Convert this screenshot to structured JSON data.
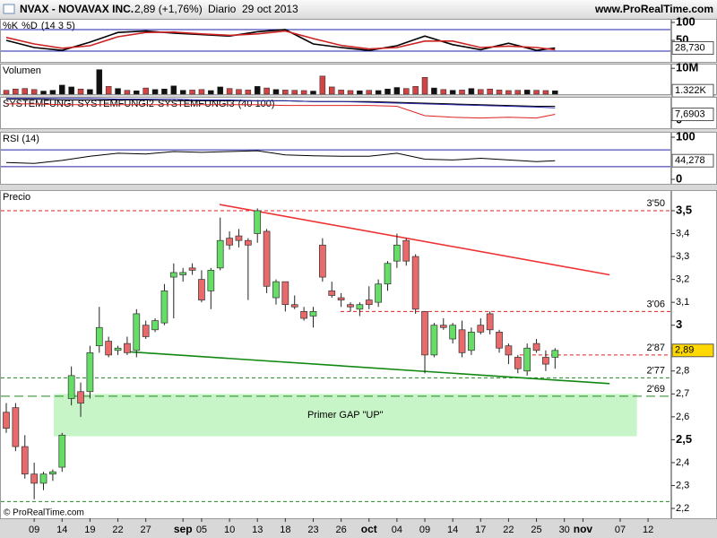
{
  "header": {
    "symbol": "NVAX - NOVAVAX INC.",
    "price": "2,89 (+1,76%)",
    "period": "Diario  29 oct 2013",
    "site": "www.ProRealTime.com"
  },
  "footer": "© ProRealTime.com",
  "chart_data": [
    {
      "type": "line",
      "title": "(14 3 5)",
      "xlim": [
        -0.675,
        71.4
      ],
      "ylim": [
        -10,
        110
      ],
      "yticks": [
        100,
        50
      ],
      "levels": [
        80,
        20
      ],
      "last_label": "28,730",
      "x": [
        0,
        3,
        6,
        9,
        12,
        15,
        18,
        21,
        24,
        27,
        30,
        33,
        36,
        39,
        42,
        45,
        48,
        51,
        54,
        57,
        59
      ],
      "series": [
        {
          "name": "%K",
          "color": "#000000",
          "values": [
            50,
            30,
            22,
            45,
            72,
            76,
            70,
            66,
            62,
            74,
            80,
            40,
            30,
            22,
            35,
            62,
            38,
            24,
            42,
            22,
            28.73
          ]
        },
        {
          "name": "%D",
          "color": "#cc2222",
          "values": [
            58,
            40,
            28,
            35,
            60,
            72,
            73,
            68,
            64,
            68,
            76,
            55,
            36,
            26,
            30,
            48,
            48,
            30,
            34,
            30,
            24
          ]
        }
      ]
    },
    {
      "type": "bar",
      "title": "Volumen",
      "xlim": [
        -0.675,
        71.4
      ],
      "ylim": [
        0,
        11800
      ],
      "yticks": [
        {
          "value": 10000,
          "label": "10M"
        }
      ],
      "last_label": "1.322K",
      "values": [
        1500,
        2000,
        2200,
        1800,
        1200,
        1500,
        3500,
        2800,
        2000,
        1800,
        9500,
        3000,
        2200,
        1500,
        1300,
        2400,
        1800,
        2000,
        3200,
        1500,
        1600,
        1800,
        1400,
        2800,
        2200,
        1800,
        1600,
        3000,
        2400,
        1800,
        1600,
        1500,
        1400,
        1200,
        7000,
        2800,
        1600,
        1400,
        1300,
        1500,
        1400,
        2000,
        2600,
        2200,
        3000,
        6500,
        2400,
        1800,
        1500,
        1600,
        2200,
        1800,
        2000,
        1600,
        1400,
        1500,
        1600,
        1500,
        1400,
        1322
      ]
    },
    {
      "type": "line",
      "title": "(40 100)",
      "xlim": [
        -0.675,
        71.4
      ],
      "ylim": [
        -10,
        30
      ],
      "yticks": [
        0
      ],
      "last_label": "7,6903",
      "x": [
        0,
        3,
        6,
        9,
        12,
        15,
        18,
        21,
        24,
        27,
        30,
        33,
        36,
        39,
        42,
        45,
        48,
        51,
        54,
        57,
        59
      ],
      "series": [
        {
          "name": "SYSTEMFUNGI",
          "color": "#000000",
          "values": [
            27,
            27,
            26,
            26,
            26,
            26,
            25,
            25,
            25,
            25,
            25,
            24,
            24,
            24,
            23,
            22,
            21,
            20,
            19,
            18,
            18
          ]
        },
        {
          "name": "SYSTEMFUNGI2",
          "color": "#dd2222",
          "values": [
            21,
            21,
            20,
            20,
            20,
            20,
            20,
            20,
            20,
            20,
            19,
            19,
            19,
            19,
            18,
            6,
            4,
            3,
            4,
            3,
            7.6903
          ]
        },
        {
          "name": "SYSTEMFUNGI3",
          "color": "#2222aa",
          "values": [
            28,
            28,
            28,
            28,
            27,
            27,
            27,
            26,
            26,
            25,
            25,
            24,
            24,
            23,
            22,
            21,
            20,
            19,
            18,
            17,
            16
          ]
        }
      ]
    },
    {
      "type": "line",
      "title": "RSI (14)",
      "xlim": [
        -0.675,
        71.4
      ],
      "ylim": [
        -10.6,
        112.8
      ],
      "yticks": [
        100,
        0
      ],
      "levels": [
        70,
        30
      ],
      "last_label": "44,278",
      "x": [
        0,
        3,
        6,
        9,
        12,
        15,
        18,
        21,
        24,
        27,
        30,
        33,
        36,
        39,
        42,
        45,
        48,
        51,
        54,
        57,
        59
      ],
      "series": [
        {
          "color": "#000000",
          "values": [
            40,
            38,
            45,
            55,
            62,
            60,
            66,
            64,
            66,
            68,
            58,
            56,
            55,
            55,
            62,
            48,
            46,
            50,
            46,
            42,
            44.278
          ]
        }
      ]
    },
    {
      "type": "candlestick",
      "title": "Precio",
      "xlim": [
        -0.675,
        71.4
      ],
      "ylim": [
        2.157,
        3.59
      ],
      "last_label": "2,89",
      "up_color": "#66dd66",
      "down_color": "#e86a6a",
      "yticks": [
        {
          "value": 3.5,
          "label": "3,5"
        },
        {
          "value": 3.4,
          "label": "3,4"
        },
        {
          "value": 3.3,
          "label": "3,3"
        },
        {
          "value": 3.2,
          "label": "3,2"
        },
        {
          "value": 3.1,
          "label": "3,1"
        },
        3,
        {
          "value": 2.9,
          "label": "2,9"
        },
        {
          "value": 2.8,
          "label": "2,8"
        },
        {
          "value": 2.7,
          "label": "2,7"
        },
        {
          "value": 2.6,
          "label": "2,6"
        },
        {
          "value": 2.5,
          "label": "2,5"
        },
        {
          "value": 2.4,
          "label": "2,4"
        },
        {
          "value": 2.3,
          "label": "2,3"
        },
        {
          "value": 2.2,
          "label": "2,2"
        }
      ],
      "xticks": [
        {
          "value": 3,
          "label": "09"
        },
        {
          "value": 6,
          "label": "14"
        },
        {
          "value": 9,
          "label": "19"
        },
        {
          "value": 12,
          "label": "22"
        },
        {
          "value": 15,
          "label": "27"
        },
        {
          "value": 19,
          "label": "sep"
        },
        {
          "value": 21,
          "label": "05"
        },
        {
          "value": 24,
          "label": "10"
        },
        {
          "value": 27,
          "label": "13"
        },
        {
          "value": 30,
          "label": "18"
        },
        {
          "value": 33,
          "label": "23"
        },
        {
          "value": 36,
          "label": "26"
        },
        {
          "value": 39,
          "label": "oct"
        },
        {
          "value": 42,
          "label": "04"
        },
        {
          "value": 45,
          "label": "09"
        },
        {
          "value": 48,
          "label": "14"
        },
        {
          "value": 51,
          "label": "17"
        },
        {
          "value": 54,
          "label": "22"
        },
        {
          "value": 57,
          "label": "25"
        },
        {
          "value": 60,
          "label": "30"
        },
        {
          "value": 62,
          "label": "nov"
        },
        {
          "value": 66,
          "label": "07"
        },
        {
          "value": 69,
          "label": "12"
        }
      ],
      "open": [
        2.62,
        2.64,
        2.47,
        2.35,
        2.31,
        2.35,
        2.38,
        2.68,
        2.71,
        2.71,
        2.91,
        2.93,
        2.89,
        2.92,
        2.89,
        3.0,
        2.98,
        3.01,
        3.21,
        3.22,
        3.25,
        3.2,
        3.15,
        3.25,
        3.38,
        3.39,
        3.37,
        3.4,
        3.41,
        3.12,
        3.19,
        3.09,
        3.06,
        3.04,
        3.35,
        3.15,
        3.12,
        3.09,
        3.07,
        3.11,
        3.1,
        3.18,
        3.28,
        3.37,
        3.3,
        3.06,
        2.87,
        3.0,
        2.94,
        2.98,
        2.89,
        3.0,
        3.05,
        2.97,
        2.91,
        2.86,
        2.8,
        2.92,
        2.86,
        2.86
      ],
      "high": [
        2.66,
        2.66,
        2.52,
        2.4,
        2.36,
        2.37,
        2.53,
        2.82,
        2.75,
        2.91,
        3.08,
        2.95,
        2.91,
        2.95,
        3.07,
        3.02,
        3.03,
        3.18,
        3.27,
        3.25,
        3.27,
        3.24,
        3.25,
        3.47,
        3.41,
        3.42,
        3.38,
        3.51,
        3.42,
        3.2,
        3.19,
        3.13,
        3.08,
        3.08,
        3.38,
        3.19,
        3.14,
        3.1,
        3.1,
        3.17,
        3.2,
        3.28,
        3.4,
        3.38,
        3.31,
        3.06,
        3.01,
        3.03,
        3.01,
        3.02,
        2.99,
        3.03,
        3.06,
        2.98,
        2.92,
        2.87,
        2.92,
        2.94,
        2.89,
        2.9
      ],
      "low": [
        2.53,
        2.45,
        2.33,
        2.24,
        2.28,
        2.32,
        2.36,
        2.65,
        2.6,
        2.68,
        2.88,
        2.86,
        2.87,
        2.87,
        2.86,
        2.94,
        2.97,
        3.0,
        3.03,
        3.19,
        3.22,
        3.1,
        3.07,
        3.24,
        3.33,
        3.34,
        3.11,
        3.36,
        3.14,
        3.09,
        3.06,
        3.07,
        3.02,
        2.99,
        3.19,
        3.12,
        3.08,
        3.06,
        3.04,
        3.07,
        3.08,
        3.15,
        3.25,
        3.26,
        3.05,
        2.79,
        2.86,
        2.98,
        2.92,
        2.86,
        2.87,
        2.96,
        2.96,
        2.88,
        2.83,
        2.79,
        2.78,
        2.88,
        2.8,
        2.81
      ],
      "close": [
        2.55,
        2.47,
        2.35,
        2.31,
        2.35,
        2.36,
        2.52,
        2.78,
        2.66,
        2.88,
        2.99,
        2.87,
        2.9,
        2.88,
        3.05,
        2.95,
        3.02,
        3.15,
        3.23,
        3.23,
        3.24,
        3.11,
        3.24,
        3.37,
        3.35,
        3.37,
        3.35,
        3.5,
        3.17,
        3.19,
        3.09,
        3.08,
        3.03,
        3.06,
        3.21,
        3.13,
        3.11,
        3.08,
        3.09,
        3.09,
        3.18,
        3.27,
        3.35,
        3.28,
        3.07,
        2.87,
        3.0,
        2.99,
        3.0,
        2.88,
        2.97,
        2.97,
        2.98,
        2.9,
        2.87,
        2.81,
        2.9,
        2.89,
        2.83,
        2.89
      ],
      "levels": [
        {
          "value": 3.5,
          "label": "3'50",
          "color": "#dd2222",
          "from": -0.675
        },
        {
          "value": 3.06,
          "label": "3'06",
          "color": "#dd2222",
          "from": 35.95
        },
        {
          "value": 2.87,
          "label": "2'87",
          "color": "#dd2222",
          "from": 55.2
        },
        {
          "value": 2.77,
          "label": "2'77",
          "color": "#228822",
          "from": -0.675
        },
        {
          "value": 2.69,
          "label": "2'69",
          "color": "#228822",
          "from": -0.675
        },
        {
          "value": 2.23,
          "color": "#228822",
          "from": -0.675
        }
      ],
      "trendlines": [
        {
          "color": "#ee3333",
          "x": [
            22.94,
            64.87
          ],
          "y": [
            3.527,
            3.22
          ]
        },
        {
          "color": "#118811",
          "x": [
            12.8,
            64.87
          ],
          "y": [
            2.885,
            2.745
          ]
        }
      ],
      "box": {
        "x": [
          5.1,
          67.8
        ],
        "y": [
          2.515,
          2.7
        ],
        "label": "Primer GAP \"UP\"",
        "color": "#c8f5c8"
      }
    }
  ]
}
